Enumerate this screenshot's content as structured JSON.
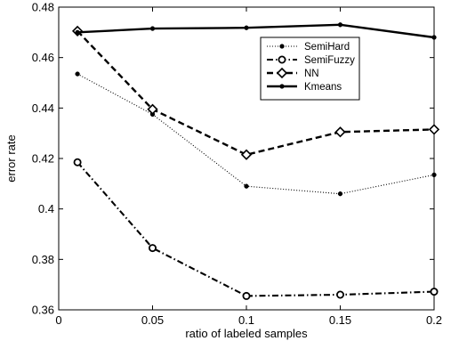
{
  "chart_data": {
    "type": "line",
    "title": "",
    "xlabel": "ratio of labeled samples",
    "ylabel": "error rate",
    "xlim": [
      0,
      0.2
    ],
    "ylim": [
      0.36,
      0.48
    ],
    "x_ticks": [
      "0",
      "0.05",
      "0.1",
      "0.15",
      "0.2"
    ],
    "y_ticks": [
      "0.36",
      "0.38",
      "0.4",
      "0.42",
      "0.44",
      "0.46",
      "0.48"
    ],
    "grid": false,
    "legend_position": "top-right",
    "x": [
      0.01,
      0.05,
      0.1,
      0.15,
      0.2
    ],
    "series": [
      {
        "name": "SemiHard",
        "values": [
          0.4535,
          0.4375,
          0.409,
          0.406,
          0.4135
        ],
        "line_style": "dotted",
        "marker": "dot",
        "color": "#000000"
      },
      {
        "name": "SemiFuzzy",
        "values": [
          0.4185,
          0.3845,
          0.3655,
          0.366,
          0.3672
        ],
        "line_style": "dash-dot",
        "marker": "circle",
        "color": "#000000"
      },
      {
        "name": "NN",
        "values": [
          0.4705,
          0.4395,
          0.4215,
          0.4305,
          0.4315
        ],
        "line_style": "dashed",
        "marker": "diamond",
        "color": "#000000"
      },
      {
        "name": "Kmeans",
        "values": [
          0.47,
          0.4715,
          0.4718,
          0.473,
          0.468
        ],
        "line_style": "solid",
        "marker": "dot",
        "color": "#000000"
      }
    ]
  }
}
